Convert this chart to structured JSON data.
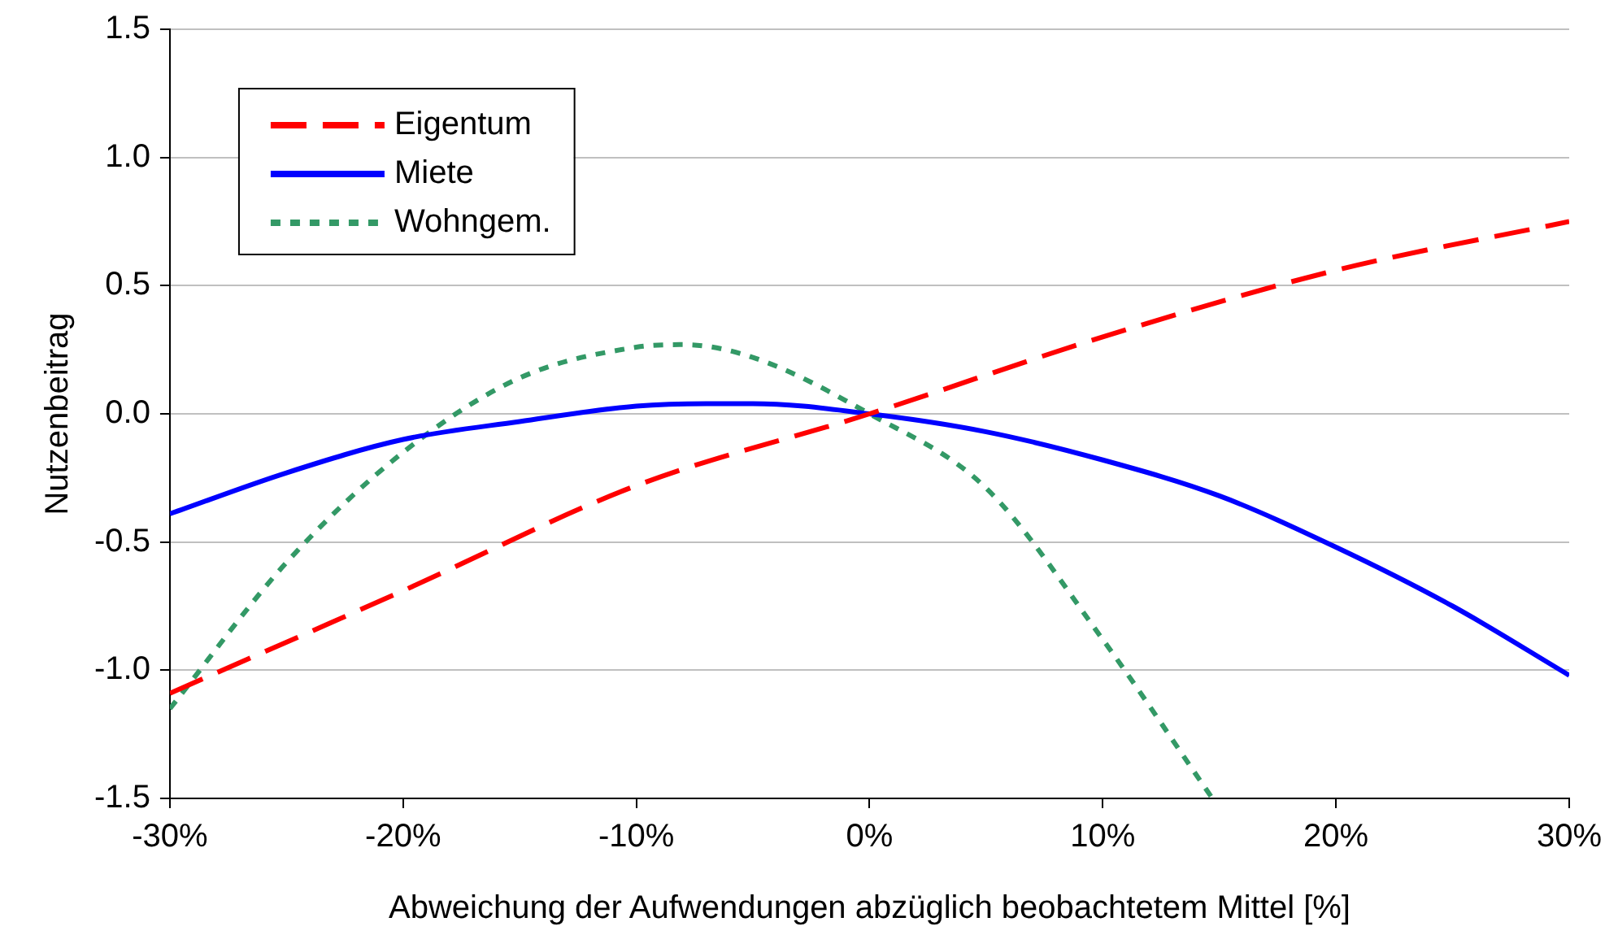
{
  "chart_data": {
    "type": "line",
    "xlabel": "Abweichung der Aufwendungen abzüglich beobachtetem Mittel [%]",
    "ylabel": "Nutzenbeitrag",
    "xlim": [
      -30,
      30
    ],
    "ylim": [
      -1.5,
      1.5
    ],
    "xticks": [
      {
        "value": -30,
        "label": "-30%"
      },
      {
        "value": -20,
        "label": "-20%"
      },
      {
        "value": -10,
        "label": "-10%"
      },
      {
        "value": 0,
        "label": "0%"
      },
      {
        "value": 10,
        "label": "10%"
      },
      {
        "value": 20,
        "label": "20%"
      },
      {
        "value": 30,
        "label": "30%"
      }
    ],
    "yticks": [
      {
        "value": -1.5,
        "label": "-1.5"
      },
      {
        "value": -1,
        "label": "-1.0"
      },
      {
        "value": -0.5,
        "label": "-0.5"
      },
      {
        "value": 0,
        "label": "0.0"
      },
      {
        "value": 0.5,
        "label": "0.5"
      },
      {
        "value": 1,
        "label": "1.0"
      },
      {
        "value": 1.5,
        "label": "1.5"
      }
    ],
    "grid": "y",
    "legend": "top left",
    "marker": "none",
    "series": [
      {
        "name": "Eigentum",
        "color": "#ff0000",
        "line_style": "dashed",
        "x": [
          -30,
          -20,
          -10,
          0,
          10,
          20,
          30
        ],
        "values": [
          -1.09,
          -0.69,
          -0.28,
          0,
          0.3,
          0.56,
          0.75
        ]
      },
      {
        "name": "Miete",
        "color": "#0000ff",
        "line_style": "solid",
        "x": [
          -30,
          -25,
          -20,
          -15,
          -10,
          -7,
          -5,
          0,
          5,
          10,
          15,
          20,
          25,
          30
        ],
        "values": [
          -0.39,
          -0.23,
          -0.1,
          -0.03,
          0.03,
          0.04,
          0.04,
          0,
          -0.07,
          -0.18,
          -0.32,
          -0.52,
          -0.75,
          -1.02
        ]
      },
      {
        "name": "Wohngem.",
        "color": "#339966",
        "line_style": "dotted",
        "x": [
          -30,
          -25,
          -20,
          -15,
          -10,
          -8,
          -5,
          0,
          5,
          10,
          14.7
        ],
        "values": [
          -1.15,
          -0.58,
          -0.15,
          0.14,
          0.26,
          0.27,
          0.22,
          0,
          -0.29,
          -0.88,
          -1.5
        ]
      }
    ]
  }
}
